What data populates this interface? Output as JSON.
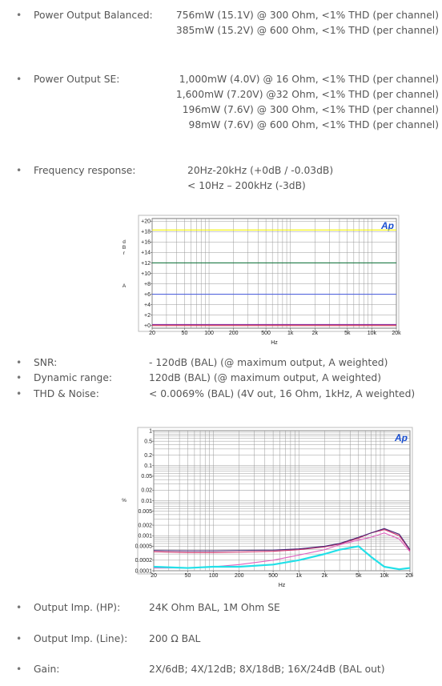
{
  "specs": [
    {
      "label": "Power Output Balanced:",
      "values": [
        "756mW (15.1V) @ 300 Ohm, <1% THD (per channel)",
        "385mW (15.2V) @ 600 Ohm, <1% THD (per channel)"
      ]
    },
    {
      "label": "Power Output SE:",
      "values": [
        "1,000mW (4.0V) @ 16 Ohm, <1% THD (per channel)",
        "1,600mW (7.20V) @32 Ohm, <1% THD (per channel)",
        "196mW (7.6V) @ 300 Ohm, <1% THD (per channel)",
        "98mW (7.6V) @ 600 Ohm, <1% THD (per channel)"
      ]
    },
    {
      "label": "Frequency response:",
      "values": [
        "20Hz-20kHz (+0dB / -0.03dB)",
        "< 10Hz – 200kHz (-3dB)"
      ]
    },
    {
      "label": "SNR:",
      "values": [
        "- 120dB (BAL) (@ maximum output, A weighted)"
      ]
    },
    {
      "label": "Dynamic range:",
      "values": [
        "120dB (BAL) (@ maximum output, A weighted)"
      ]
    },
    {
      "label": "THD & Noise:",
      "values": [
        "< 0.0069% (BAL) (4V out, 16 Ohm, 1kHz, A weighted)"
      ]
    },
    {
      "label": "Output Imp. (HP):",
      "values": [
        "24K Ohm BAL, 1M Ohm SE"
      ]
    },
    {
      "label": "Output Imp. (Line):",
      "values": [
        "200 Ω BAL"
      ]
    },
    {
      "label": "Gain:",
      "values": [
        "2X/6dB; 4X/12dB; 8X/18dB; 16X/24dB (BAL out)"
      ]
    }
  ],
  "chart_data": [
    {
      "type": "line",
      "logo": "Ap",
      "x_label": "Hz",
      "y_label": [
        "dBr",
        "A"
      ],
      "xlog": true,
      "ylog": false,
      "xlim": [
        20,
        20000
      ],
      "ylim": [
        -0.5,
        20.5
      ],
      "xticks": [
        20,
        50,
        100,
        200,
        500,
        {
          "value": 1000,
          "label": "1k"
        },
        {
          "value": 2000,
          "label": "2k"
        },
        {
          "value": 5000,
          "label": "5k"
        },
        {
          "value": 10000,
          "label": "10k"
        },
        {
          "value": 20000,
          "label": "20k"
        }
      ],
      "xgrid": [
        20,
        30,
        40,
        50,
        60,
        70,
        80,
        90,
        100,
        200,
        300,
        400,
        500,
        600,
        700,
        800,
        900,
        1000,
        2000,
        3000,
        4000,
        5000,
        6000,
        7000,
        8000,
        9000,
        10000,
        20000
      ],
      "yticks": [
        {
          "value": 0,
          "label": "+0"
        },
        {
          "value": 2,
          "label": "+2"
        },
        {
          "value": 4,
          "label": "+4"
        },
        {
          "value": 6,
          "label": "+6"
        },
        {
          "value": 8,
          "label": "+8"
        },
        {
          "value": 10,
          "label": "+10"
        },
        {
          "value": 12,
          "label": "+12"
        },
        {
          "value": 14,
          "label": "+14"
        },
        {
          "value": 16,
          "label": "+16"
        },
        {
          "value": 18,
          "label": "+18"
        },
        {
          "value": 20,
          "label": "+20"
        }
      ],
      "ygrid": [
        0,
        2,
        4,
        6,
        8,
        10,
        12,
        14,
        16,
        18,
        20
      ],
      "x": [
        20,
        20000
      ],
      "series": [
        {
          "color": "#f2f200",
          "values": [
            18.3,
            18.3
          ]
        },
        {
          "color": "#1f7a45",
          "values": [
            12,
            12
          ]
        },
        {
          "color": "#5566dd",
          "values": [
            6,
            6
          ]
        },
        {
          "color": "#8a2a9a",
          "values": [
            0.2,
            0.2
          ]
        },
        {
          "color": "#cc2244",
          "values": [
            0,
            0
          ]
        }
      ]
    },
    {
      "type": "line",
      "logo": "Ap",
      "x_label": "Hz",
      "y_label": [
        "%"
      ],
      "xlog": true,
      "ylog": true,
      "xlim": [
        20,
        20000
      ],
      "ylim": [
        0.0001,
        1
      ],
      "xticks": [
        20,
        50,
        100,
        200,
        500,
        {
          "value": 1000,
          "label": "1k"
        },
        {
          "value": 2000,
          "label": "2k"
        },
        {
          "value": 5000,
          "label": "5k"
        },
        {
          "value": 10000,
          "label": "10k"
        },
        {
          "value": 20000,
          "label": "20k"
        }
      ],
      "xgrid": [
        20,
        30,
        40,
        50,
        60,
        70,
        80,
        90,
        100,
        200,
        300,
        400,
        500,
        600,
        700,
        800,
        900,
        1000,
        2000,
        3000,
        4000,
        5000,
        6000,
        7000,
        8000,
        9000,
        10000,
        20000
      ],
      "yticks": [
        1,
        0.5,
        0.2,
        0.1,
        0.05,
        0.02,
        0.01,
        0.005,
        0.002,
        0.001,
        0.0005,
        0.0002,
        0.0001
      ],
      "ygrid": [
        1,
        0.9,
        0.8,
        0.7,
        0.6,
        0.5,
        0.4,
        0.3,
        0.2,
        0.1,
        0.09,
        0.08,
        0.07,
        0.06,
        0.05,
        0.04,
        0.03,
        0.02,
        0.01,
        0.009,
        0.008,
        0.007,
        0.006,
        0.005,
        0.004,
        0.003,
        0.002,
        0.001,
        0.0009,
        0.0008,
        0.0007,
        0.0006,
        0.0005,
        0.0004,
        0.0003,
        0.0002,
        0.0001
      ],
      "x": [
        20,
        50,
        100,
        200,
        500,
        1000,
        2000,
        3000,
        5000,
        7000,
        10000,
        15000,
        20000
      ],
      "series": [
        {
          "color": "#e060c0",
          "values": [
            0.00012,
            0.00012,
            0.00013,
            0.00015,
            0.0002,
            0.00028,
            0.0004,
            0.00055,
            0.00075,
            0.0009,
            0.0012,
            0.0008,
            0.00035
          ]
        },
        {
          "color": "#22e0e8",
          "values": [
            0.00013,
            0.00012,
            0.00013,
            0.00013,
            0.00015,
            0.0002,
            0.0003,
            0.0004,
            0.0005,
            0.00025,
            0.00013,
            0.00011,
            0.00012
          ]
        },
        {
          "color": "#d0306a",
          "values": [
            0.00035,
            0.00033,
            0.00033,
            0.00034,
            0.00036,
            0.0004,
            0.00048,
            0.00058,
            0.00085,
            0.0012,
            0.0015,
            0.001,
            0.00038
          ]
        },
        {
          "color": "#4b2a7a",
          "values": [
            0.00038,
            0.00037,
            0.00037,
            0.00038,
            0.00039,
            0.00042,
            0.0005,
            0.0006,
            0.0009,
            0.0012,
            0.0016,
            0.0011,
            0.0004
          ]
        }
      ]
    }
  ]
}
